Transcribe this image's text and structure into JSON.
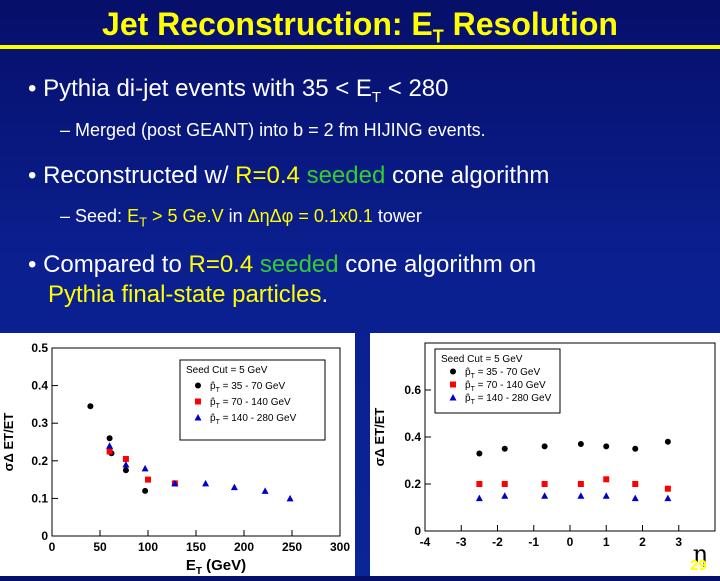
{
  "slide": {
    "title_pre": "Jet Reconstruction: E",
    "title_sub": "T",
    "title_post": " Resolution",
    "page_number": "29",
    "bullets": [
      {
        "pre": "Pythia di-jet events with 35 < E",
        "sub": "T",
        "post": " < 280"
      },
      {
        "text": "Merged (post GEANT) into b = 2 fm HIJING events."
      },
      {
        "pre": "Reconstructed w/ ",
        "r": "R=0.4",
        "space": " ",
        "seeded": "seeded",
        "post": " cone algorithm"
      },
      {
        "pre": "Seed: ",
        "et_e": "E",
        "et_sub": "T",
        "cut": " > 5 Ge.V",
        "in": " in ",
        "deta": "ΔηΔφ",
        "tower": " = 0.1x0.1",
        "post": " tower"
      },
      {
        "pre": "Compared to ",
        "r": "R=0.4",
        "space": " ",
        "seeded": "seeded",
        "mid": " cone algorithm on",
        "line2": "Pythia final-state particles",
        "end": "."
      }
    ]
  },
  "chart_data": [
    {
      "type": "scatter",
      "xlabel_pre": "E",
      "xlabel_sub": "T",
      "xlabel_post": " (GeV)",
      "ylabel": "σΔ ET/ET",
      "xlim": [
        0,
        300
      ],
      "ylim": [
        0,
        0.5
      ],
      "xticks": [
        0,
        50,
        100,
        150,
        200,
        250,
        300
      ],
      "yticks": [
        0,
        0.1,
        0.2,
        0.3,
        0.4,
        0.5
      ],
      "legend_title": "Seed Cut = 5 GeV",
      "legend_position": "top-right",
      "series": [
        {
          "name": "p̂T = 35 - 70 GeV",
          "color": "#000000",
          "marker": "circle",
          "x": [
            40,
            60,
            62,
            77,
            97
          ],
          "y": [
            0.345,
            0.26,
            0.22,
            0.175,
            0.12
          ]
        },
        {
          "name": "p̂T = 70 - 140 GeV",
          "color": "#ff0000",
          "marker": "square",
          "x": [
            60,
            77,
            100,
            128
          ],
          "y": [
            0.225,
            0.205,
            0.15,
            0.14
          ]
        },
        {
          "name": "p̂T = 140 - 280 GeV",
          "color": "#0000cc",
          "marker": "triangle",
          "x": [
            60,
            77,
            97,
            128,
            160,
            190,
            222,
            248
          ],
          "y": [
            0.24,
            0.19,
            0.18,
            0.14,
            0.14,
            0.13,
            0.12,
            0.1
          ]
        }
      ]
    },
    {
      "type": "scatter",
      "xlabel": "η",
      "ylabel": "σΔ ET/ET",
      "xlim": [
        -4,
        4
      ],
      "ylim": [
        0,
        0.8
      ],
      "xticks": [
        -4,
        -3,
        -2,
        -1,
        0,
        1,
        2,
        3
      ],
      "yticks": [
        0,
        0.2,
        0.4,
        0.6
      ],
      "legend_title": "Seed Cut = 5 GeV",
      "legend_position": "top-left",
      "series": [
        {
          "name": "p̂T = 35 - 70 GeV",
          "color": "#000000",
          "marker": "circle",
          "x": [
            -2.5,
            -1.8,
            -0.7,
            0.3,
            1.0,
            1.8,
            2.7
          ],
          "y": [
            0.33,
            0.35,
            0.36,
            0.37,
            0.36,
            0.35,
            0.38
          ]
        },
        {
          "name": "p̂T = 70 - 140 GeV",
          "color": "#ff0000",
          "marker": "square",
          "x": [
            -2.5,
            -1.8,
            -0.7,
            0.3,
            1.0,
            1.8,
            2.7
          ],
          "y": [
            0.2,
            0.2,
            0.2,
            0.2,
            0.22,
            0.2,
            0.18
          ]
        },
        {
          "name": "p̂T = 140 - 280 GeV",
          "color": "#0000cc",
          "marker": "triangle",
          "x": [
            -2.5,
            -1.8,
            -0.7,
            0.3,
            1.0,
            1.8,
            2.7
          ],
          "y": [
            0.14,
            0.15,
            0.15,
            0.15,
            0.15,
            0.14,
            0.14
          ]
        }
      ]
    }
  ]
}
